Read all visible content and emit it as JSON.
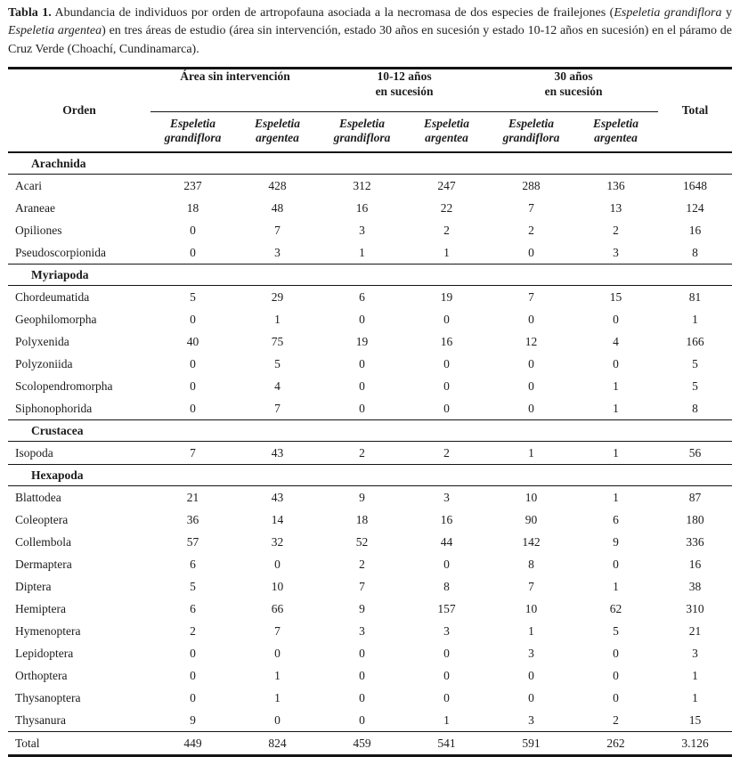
{
  "caption": {
    "segments": [
      {
        "text": "Tabla 1.",
        "bold": true
      },
      {
        "text": " Abundancia de individuos por orden de artropofauna asociada a la necromasa de dos especies de frailejones ("
      },
      {
        "text": "Espeletia grandiflora",
        "italic": true
      },
      {
        "text": " y "
      },
      {
        "text": "Espeletia argentea",
        "italic": true
      },
      {
        "text": ") en tres áreas de estudio (área sin intervención, estado 30 años en sucesión y estado 10-12 años en sucesión) en el páramo de Cruz Verde (Choachí, Cundinamarca)."
      }
    ]
  },
  "table": {
    "orden_label": "Orden",
    "total_label": "Total",
    "groups": [
      {
        "line1": "Área sin intervención",
        "line2": ""
      },
      {
        "line1": "10-12 años",
        "line2": "en sucesión"
      },
      {
        "line1": "30 años",
        "line2": "en sucesión"
      }
    ],
    "species": [
      {
        "line1": "Espeletia",
        "line2": "grandiflora"
      },
      {
        "line1": "Espeletia",
        "line2": "argentea"
      },
      {
        "line1": "Espeletia",
        "line2": "grandiflora"
      },
      {
        "line1": "Espeletia",
        "line2": "argentea"
      },
      {
        "line1": "Espeletia",
        "line2": "grandiflora"
      },
      {
        "line1": "Espeletia",
        "line2": "argentea"
      }
    ],
    "sections": [
      {
        "name": "Arachnida",
        "rows": [
          [
            "Acari",
            "237",
            "428",
            "312",
            "247",
            "288",
            "136",
            "1648"
          ],
          [
            "Araneae",
            "18",
            "48",
            "16",
            "22",
            "7",
            "13",
            "124"
          ],
          [
            "Opiliones",
            "0",
            "7",
            "3",
            "2",
            "2",
            "2",
            "16"
          ],
          [
            "Pseudoscorpionida",
            "0",
            "3",
            "1",
            "1",
            "0",
            "3",
            "8"
          ]
        ]
      },
      {
        "name": "Myriapoda",
        "rows": [
          [
            "Chordeumatida",
            "5",
            "29",
            "6",
            "19",
            "7",
            "15",
            "81"
          ],
          [
            "Geophilomorpha",
            "0",
            "1",
            "0",
            "0",
            "0",
            "0",
            "1"
          ],
          [
            "Polyxenida",
            "40",
            "75",
            "19",
            "16",
            "12",
            "4",
            "166"
          ],
          [
            "Polyzoniida",
            "0",
            "5",
            "0",
            "0",
            "0",
            "0",
            "5"
          ],
          [
            "Scolopendromorpha",
            "0",
            "4",
            "0",
            "0",
            "0",
            "1",
            "5"
          ],
          [
            "Siphonophorida",
            "0",
            "7",
            "0",
            "0",
            "0",
            "1",
            "8"
          ]
        ]
      },
      {
        "name": "Crustacea",
        "rows": [
          [
            "Isopoda",
            "7",
            "43",
            "2",
            "2",
            "1",
            "1",
            "56"
          ]
        ]
      },
      {
        "name": "Hexapoda",
        "rows": [
          [
            "Blattodea",
            "21",
            "43",
            "9",
            "3",
            "10",
            "1",
            "87"
          ],
          [
            "Coleoptera",
            "36",
            "14",
            "18",
            "16",
            "90",
            "6",
            "180"
          ],
          [
            "Collembola",
            "57",
            "32",
            "52",
            "44",
            "142",
            "9",
            "336"
          ],
          [
            "Dermaptera",
            "6",
            "0",
            "2",
            "0",
            "8",
            "0",
            "16"
          ],
          [
            "Diptera",
            "5",
            "10",
            "7",
            "8",
            "7",
            "1",
            "38"
          ],
          [
            "Hemiptera",
            "6",
            "66",
            "9",
            "157",
            "10",
            "62",
            "310"
          ],
          [
            "Hymenoptera",
            "2",
            "7",
            "3",
            "3",
            "1",
            "5",
            "21"
          ],
          [
            "Lepidoptera",
            "0",
            "0",
            "0",
            "0",
            "3",
            "0",
            "3"
          ],
          [
            "Orthoptera",
            "0",
            "1",
            "0",
            "0",
            "0",
            "0",
            "1"
          ],
          [
            "Thysanoptera",
            "0",
            "1",
            "0",
            "0",
            "0",
            "0",
            "1"
          ],
          [
            "Thysanura",
            "9",
            "0",
            "0",
            "1",
            "3",
            "2",
            "15"
          ]
        ]
      }
    ],
    "total_row": {
      "label": "Total",
      "values": [
        "449",
        "824",
        "459",
        "541",
        "591",
        "262",
        "3.126"
      ]
    }
  }
}
